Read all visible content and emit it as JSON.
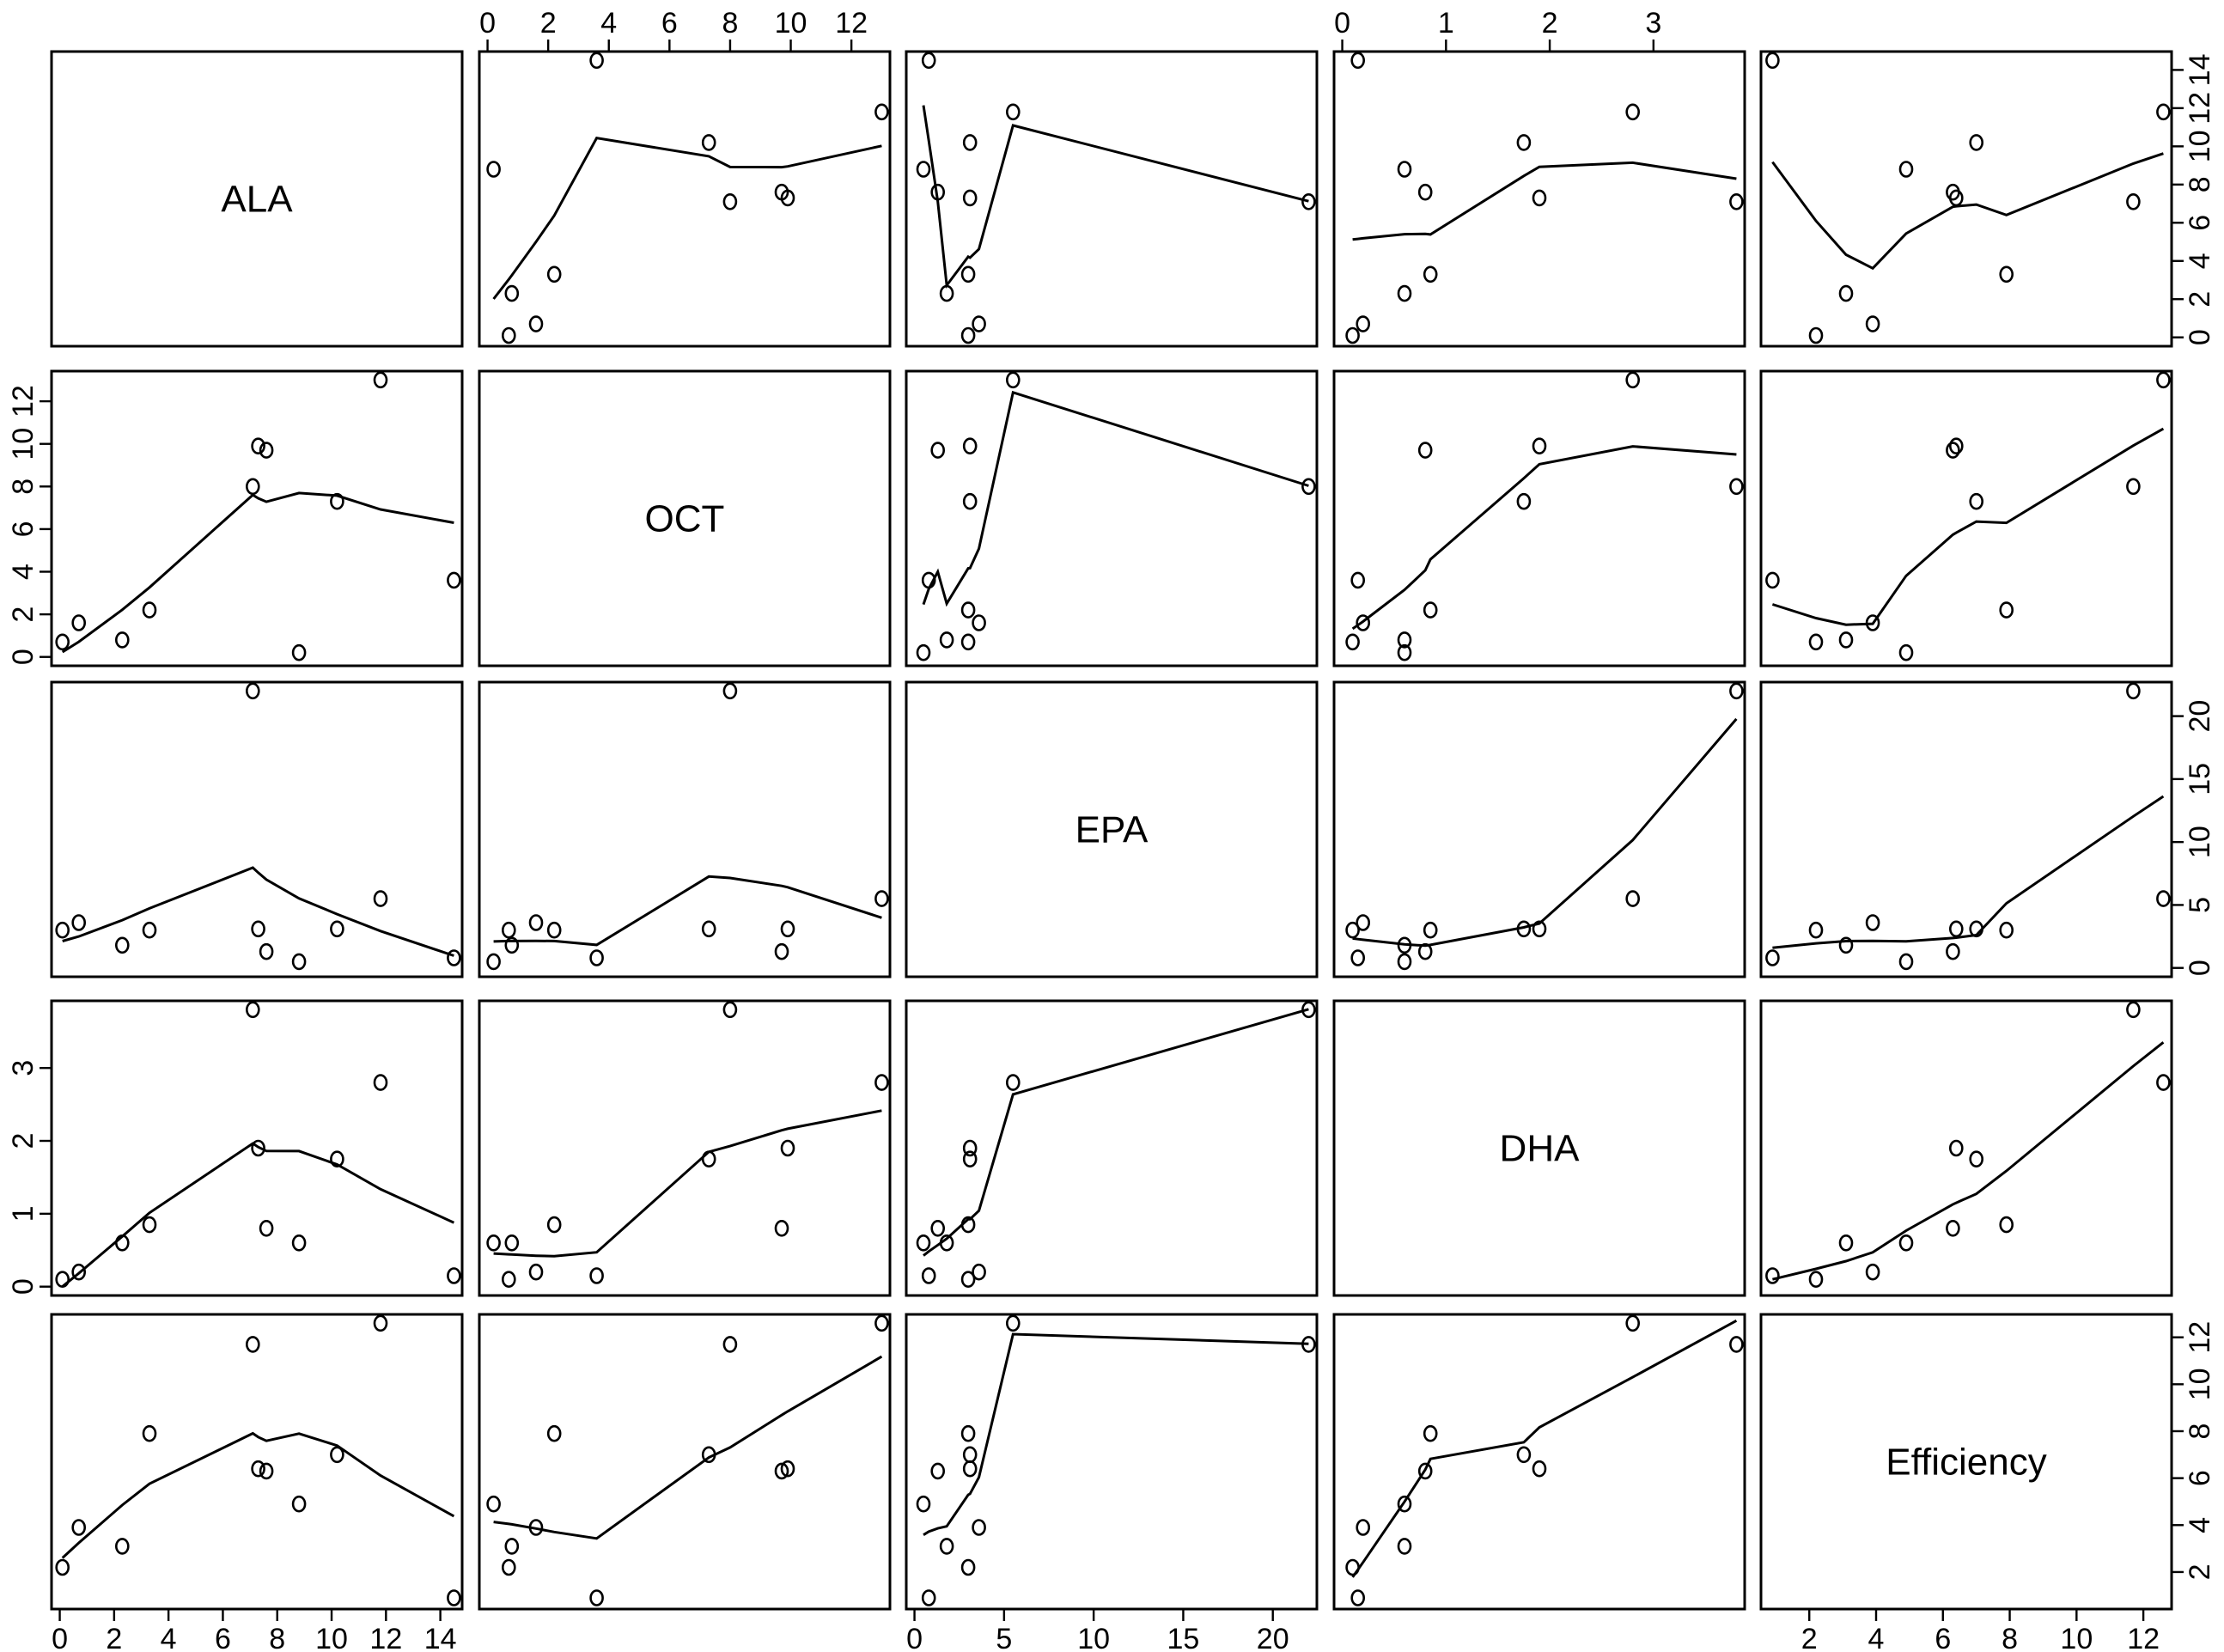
{
  "chart_data": {
    "type": "scatter",
    "subtype": "scatterplot-matrix",
    "smoother": "lowess",
    "grid": false,
    "variables": [
      "ALA",
      "OCT",
      "EPA",
      "DHA",
      "Efficiency"
    ],
    "ranges": {
      "ALA": [
        0,
        14.5
      ],
      "OCT": [
        0,
        13
      ],
      "EPA": [
        0,
        22
      ],
      "DHA": [
        0,
        3.8
      ],
      "Efficiency": [
        0.8,
        12.6
      ]
    },
    "ticks": {
      "ALA": [
        0,
        2,
        4,
        6,
        8,
        10,
        12,
        14
      ],
      "OCT": [
        0,
        2,
        4,
        6,
        8,
        10,
        12
      ],
      "EPA": [
        0,
        5,
        10,
        15,
        20
      ],
      "DHA": [
        0,
        1,
        2,
        3
      ],
      "Efficiency": [
        2,
        4,
        6,
        8,
        10,
        12
      ]
    },
    "tick_labels": {
      "ALA": [
        "0",
        "2",
        "4",
        "6",
        "8",
        "10",
        "12",
        "14"
      ],
      "OCT": [
        "0",
        "2",
        "4",
        "6",
        "8",
        "10",
        "12"
      ],
      "EPA": [
        "0",
        "5",
        "10",
        "15",
        "20"
      ],
      "DHA": [
        "0",
        "1",
        "2",
        "3"
      ],
      "Efficiency": [
        "2",
        "4",
        "6",
        "8",
        "10",
        "12"
      ]
    },
    "observations": [
      {
        "ALA": 0.1,
        "OCT": 0.7,
        "EPA": 3.0,
        "DHA": 0.1,
        "Efficiency": 2.2
      },
      {
        "ALA": 0.7,
        "OCT": 1.6,
        "EPA": 3.6,
        "DHA": 0.2,
        "Efficiency": 3.9
      },
      {
        "ALA": 2.3,
        "OCT": 0.8,
        "EPA": 1.8,
        "DHA": 0.6,
        "Efficiency": 3.1
      },
      {
        "ALA": 3.3,
        "OCT": 2.2,
        "EPA": 3.0,
        "DHA": 0.85,
        "Efficiency": 7.9
      },
      {
        "ALA": 7.1,
        "OCT": 8.0,
        "EPA": 22.0,
        "DHA": 3.8,
        "Efficiency": 11.7
      },
      {
        "ALA": 7.3,
        "OCT": 9.9,
        "EPA": 3.1,
        "DHA": 1.9,
        "Efficiency": 6.4
      },
      {
        "ALA": 7.6,
        "OCT": 9.7,
        "EPA": 1.3,
        "DHA": 0.8,
        "Efficiency": 6.3
      },
      {
        "ALA": 8.8,
        "OCT": 0.2,
        "EPA": 0.5,
        "DHA": 0.6,
        "Efficiency": 4.9
      },
      {
        "ALA": 10.2,
        "OCT": 7.3,
        "EPA": 3.1,
        "DHA": 1.75,
        "Efficiency": 7.0
      },
      {
        "ALA": 11.8,
        "OCT": 13.0,
        "EPA": 5.5,
        "DHA": 2.8,
        "Efficiency": 12.6
      },
      {
        "ALA": 14.5,
        "OCT": 3.6,
        "EPA": 0.8,
        "DHA": 0.15,
        "Efficiency": 0.9
      }
    ]
  }
}
